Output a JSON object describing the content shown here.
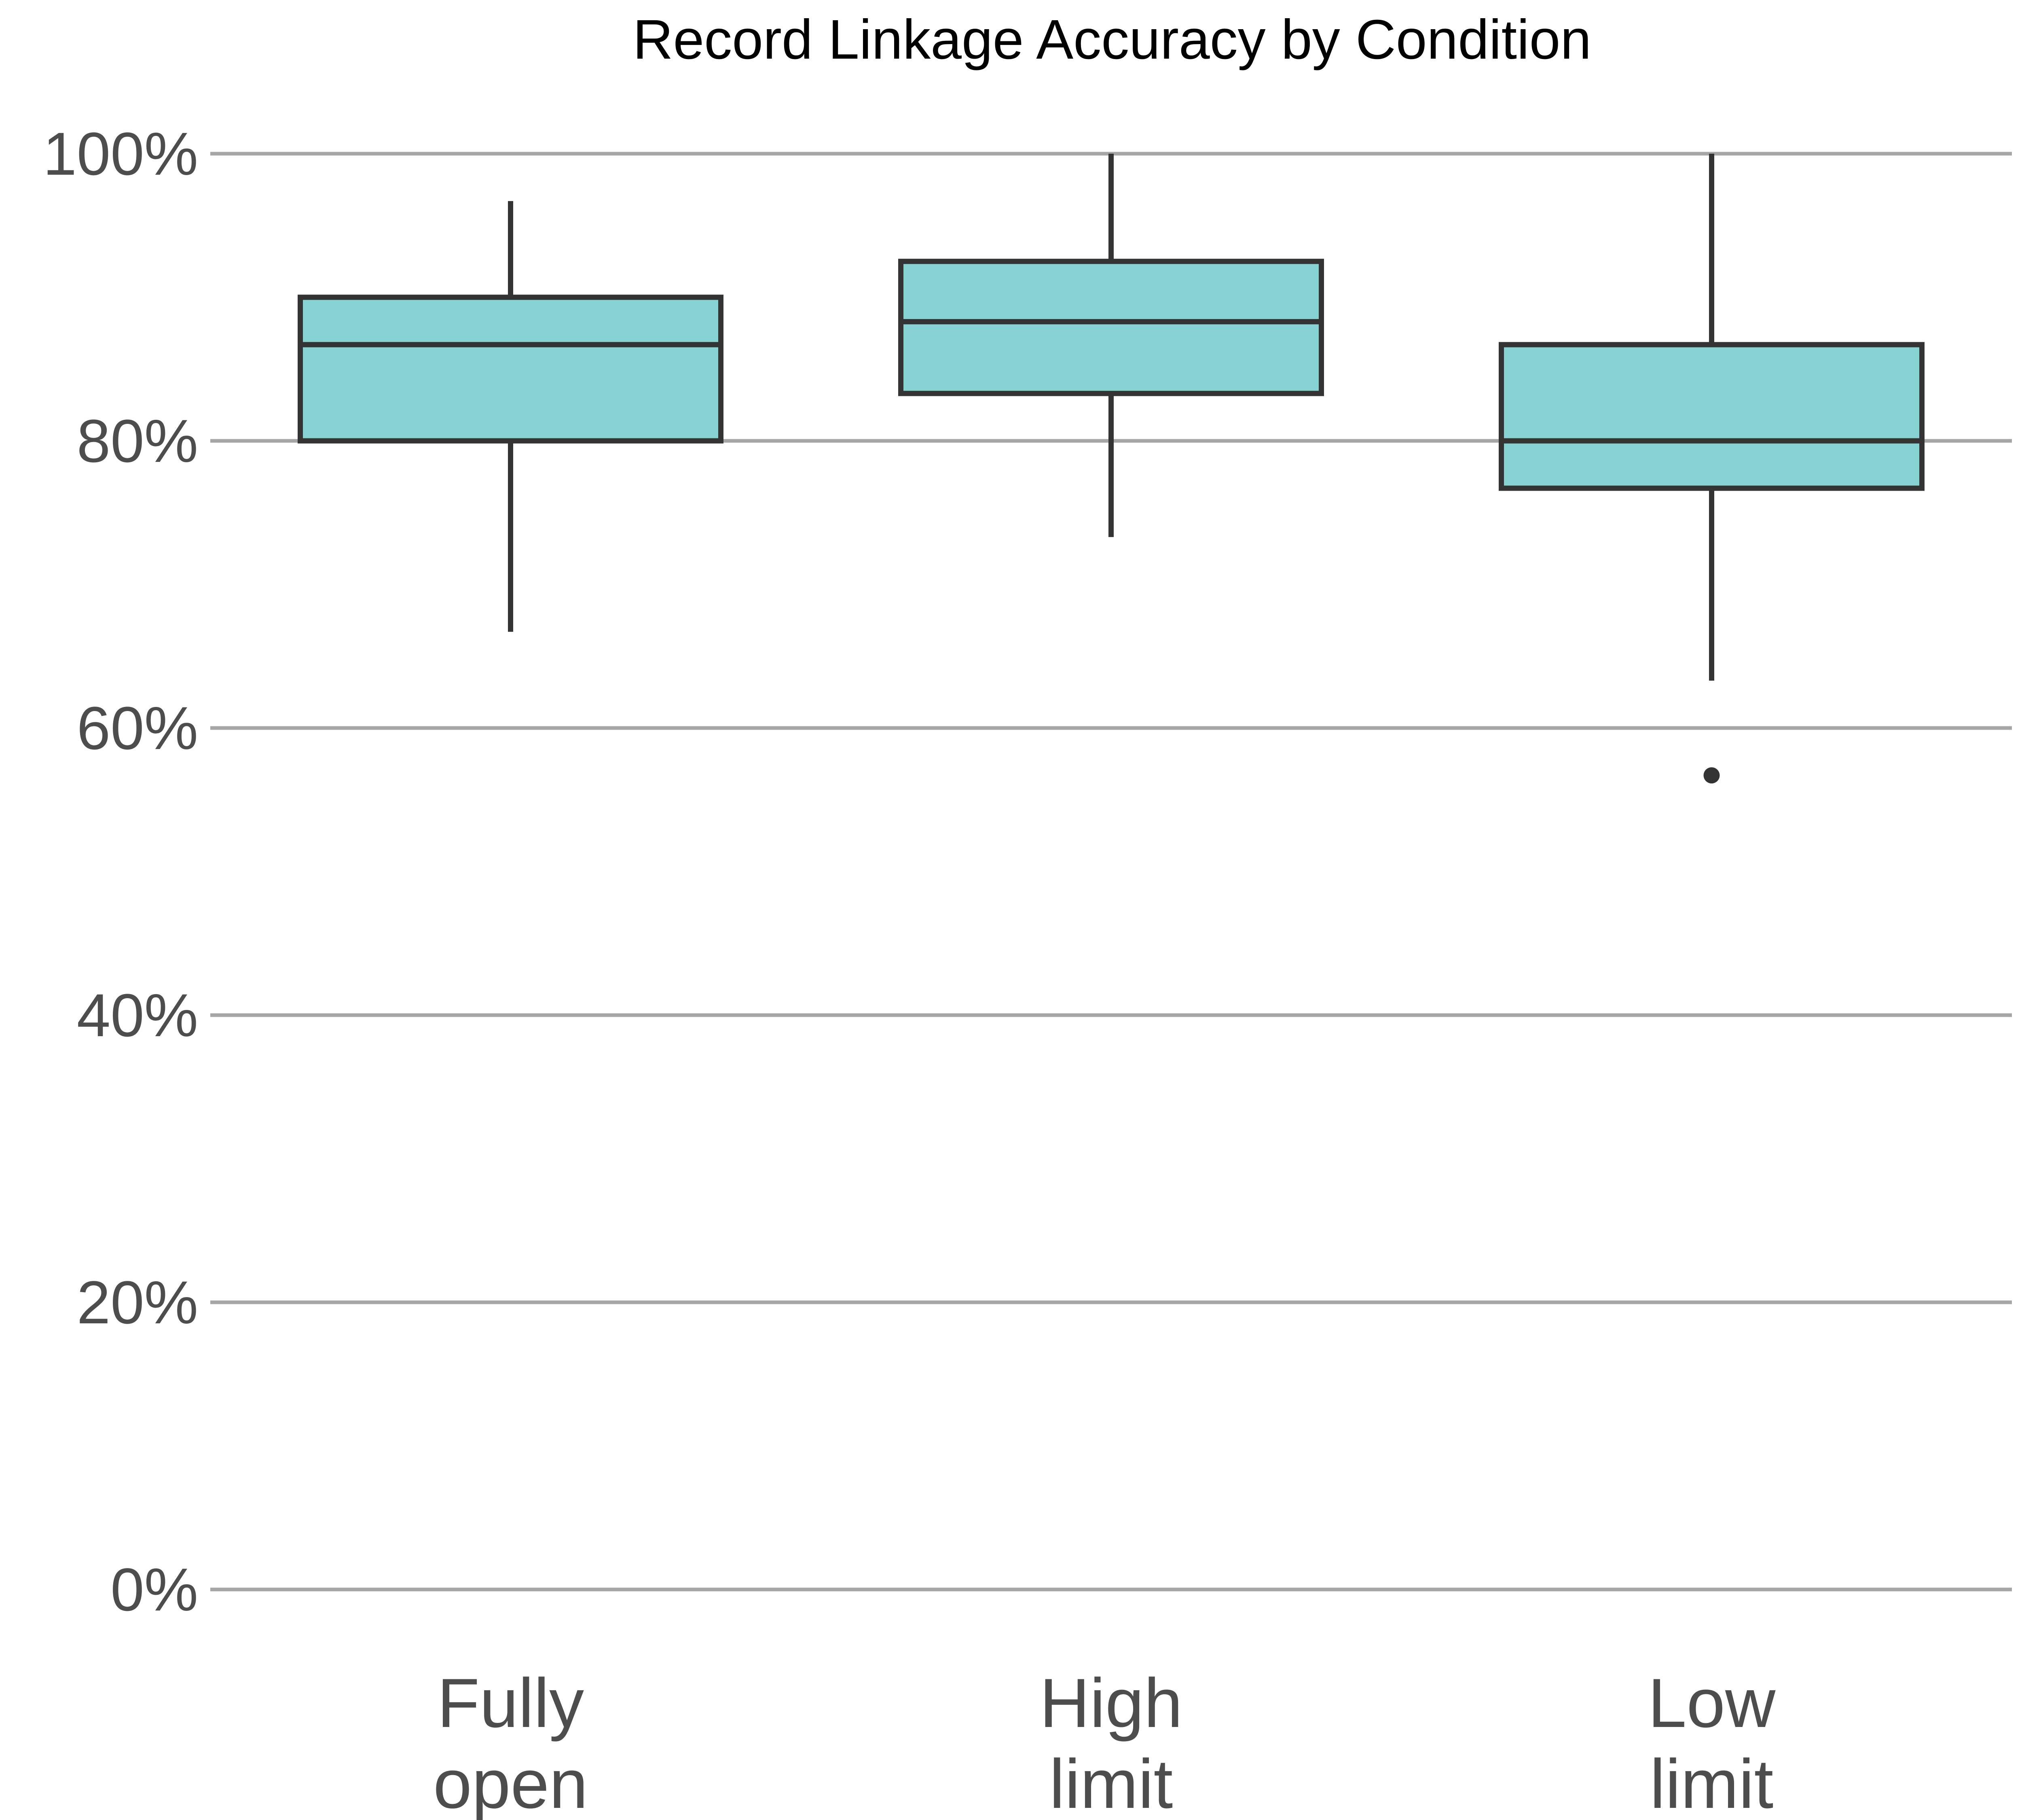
{
  "chart_data": {
    "type": "boxplot",
    "title": "Record Linkage Accuracy by Condition",
    "xlabel": "",
    "ylabel": "",
    "y_tick_format": "percent",
    "ylim": [
      0,
      1
    ],
    "y_ticks": [
      0,
      0.2,
      0.4,
      0.6,
      0.8,
      1.0
    ],
    "y_tick_labels": [
      "0%",
      "20%",
      "40%",
      "60%",
      "80%",
      "100%"
    ],
    "grid": "horizontal major lines",
    "legend": "none",
    "categories": [
      {
        "label_lines": [
          "Fully",
          "open"
        ],
        "whisker_low": 0.667,
        "q1": 0.8,
        "median": 0.867,
        "q3": 0.9,
        "whisker_high": 0.967,
        "outliers": []
      },
      {
        "label_lines": [
          "High",
          "limit"
        ],
        "whisker_low": 0.733,
        "q1": 0.833,
        "median": 0.883,
        "q3": 0.925,
        "whisker_high": 1.0,
        "outliers": []
      },
      {
        "label_lines": [
          "Low",
          "limit"
        ],
        "whisker_low": 0.633,
        "q1": 0.767,
        "median": 0.8,
        "q3": 0.867,
        "whisker_high": 1.0,
        "outliers": [
          0.567
        ]
      }
    ],
    "colors": {
      "box_fill": "#87d2d3",
      "box_stroke": "#333333",
      "grid": "#a6a6a6",
      "tick_text": "#4d4d4d",
      "title_text": "#000000"
    }
  }
}
